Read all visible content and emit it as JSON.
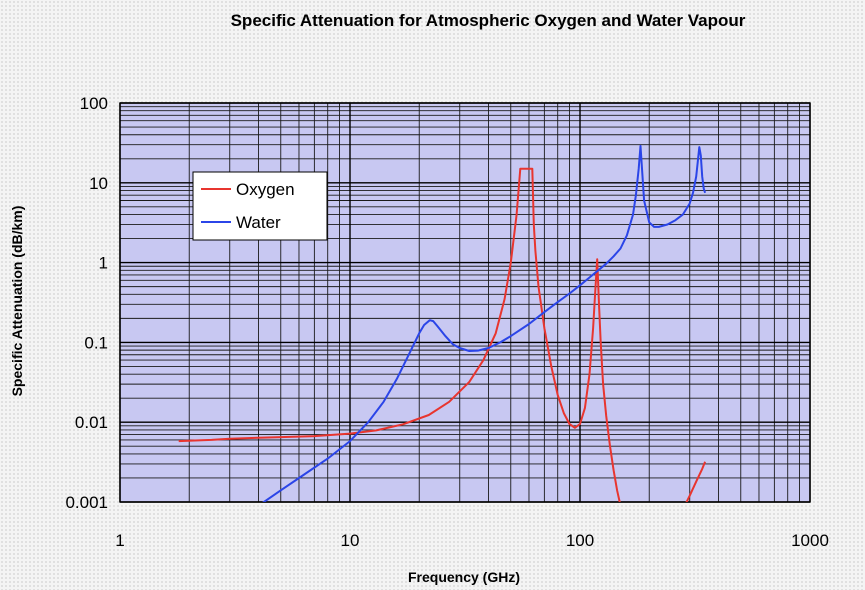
{
  "chart_data": {
    "type": "line",
    "title": "Specific Attenuation for Atmospheric Oxygen and Water Vapour",
    "xlabel": "Frequency (GHz)",
    "ylabel": "Specific Attenuation (dB/km)",
    "xscale": "log",
    "yscale": "log",
    "xlim": [
      1,
      1000
    ],
    "ylim": [
      0.001,
      100
    ],
    "xticks": [
      "1",
      "10",
      "100",
      "1000"
    ],
    "yticks": [
      "0.001",
      "0.01",
      "0.1",
      "1",
      "10",
      "100"
    ],
    "grid": true,
    "legend_position": "upper-left",
    "plot_background": "#c8c8f2",
    "series": [
      {
        "name": "Oxygen",
        "color": "#e8352f",
        "x": [
          1.8,
          2.5,
          3,
          4,
          5,
          7,
          10,
          13,
          17,
          22,
          27,
          33,
          38,
          43,
          47,
          50,
          53,
          55,
          57,
          58,
          60,
          62,
          63,
          64,
          66,
          70,
          75,
          80,
          85,
          90,
          95,
          100,
          105,
          110,
          114,
          116,
          118.75,
          121,
          123,
          126,
          130,
          135,
          140,
          145,
          150
        ],
        "y": [
          0.0058,
          0.006,
          0.0062,
          0.0064,
          0.0065,
          0.0067,
          0.0072,
          0.0079,
          0.0094,
          0.0123,
          0.018,
          0.032,
          0.06,
          0.13,
          0.35,
          1.0,
          4.0,
          15,
          15,
          15,
          15,
          15,
          3.0,
          1.4,
          0.5,
          0.15,
          0.05,
          0.022,
          0.013,
          0.0095,
          0.0085,
          0.0095,
          0.015,
          0.04,
          0.15,
          0.35,
          1.1,
          0.3,
          0.1,
          0.03,
          0.012,
          0.005,
          0.0025,
          0.0014,
          0.0009
        ]
      },
      {
        "name": "Oxygen",
        "color": "#e8352f",
        "x": [
          280,
          300,
          320,
          340,
          350
        ],
        "y": [
          0.0008,
          0.0012,
          0.0018,
          0.0026,
          0.0032
        ]
      },
      {
        "name": "Water",
        "color": "#2b45e8",
        "x": [
          4,
          5,
          6,
          8,
          10,
          12,
          14,
          16,
          18,
          20,
          21,
          22.235,
          23,
          24,
          26,
          28,
          30,
          33,
          36,
          40,
          45,
          50,
          60,
          70,
          80,
          90,
          100,
          110,
          120,
          130,
          140,
          150,
          160,
          170,
          175,
          180,
          183.31,
          186,
          190,
          200,
          210,
          220,
          240,
          260,
          280,
          300,
          310,
          320,
          325,
          330,
          335,
          340,
          345,
          350
        ],
        "y": [
          0.0009,
          0.0014,
          0.002,
          0.0035,
          0.0058,
          0.01,
          0.018,
          0.035,
          0.07,
          0.13,
          0.165,
          0.19,
          0.185,
          0.16,
          0.12,
          0.095,
          0.085,
          0.078,
          0.079,
          0.085,
          0.1,
          0.12,
          0.17,
          0.24,
          0.32,
          0.41,
          0.52,
          0.65,
          0.8,
          0.97,
          1.2,
          1.5,
          2.2,
          4.0,
          7.0,
          15,
          29,
          15,
          6.0,
          3.2,
          2.8,
          2.8,
          3.0,
          3.4,
          4.0,
          5.5,
          7.5,
          12,
          18,
          28,
          22,
          12,
          8.5,
          7.5
        ]
      }
    ]
  }
}
